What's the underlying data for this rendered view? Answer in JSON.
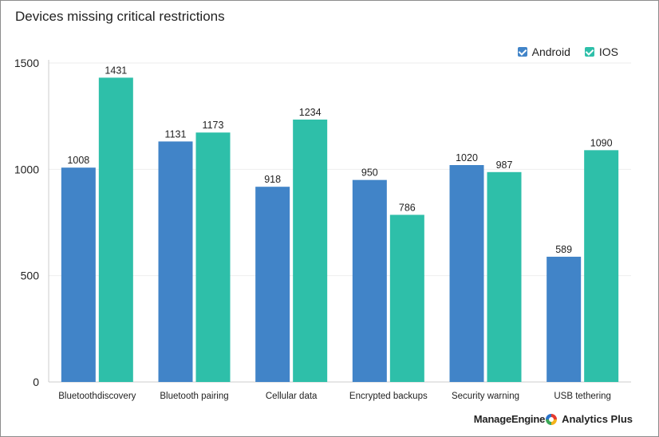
{
  "chart_data": {
    "type": "bar",
    "title": "Devices missing critical restrictions",
    "categories": [
      "Bluetoothdiscovery",
      "Bluetooth pairing",
      "Cellular data",
      "Encrypted backups",
      "Security warning",
      "USB tethering"
    ],
    "series": [
      {
        "name": "Android",
        "color": "#4184c8",
        "values": [
          1008,
          1131,
          918,
          950,
          1020,
          589
        ]
      },
      {
        "name": "IOS",
        "color": "#2ebfa9",
        "values": [
          1431,
          1173,
          1234,
          786,
          987,
          1090
        ]
      }
    ],
    "yticks": [
      0,
      500,
      1000,
      1500
    ],
    "ylim": [
      0,
      1500
    ],
    "grid": true,
    "legend_position": "top-right"
  },
  "legend": {
    "android_label": "Android",
    "ios_label": "IOS"
  },
  "branding": {
    "company": "ManageEngine",
    "product": "Analytics Plus"
  }
}
